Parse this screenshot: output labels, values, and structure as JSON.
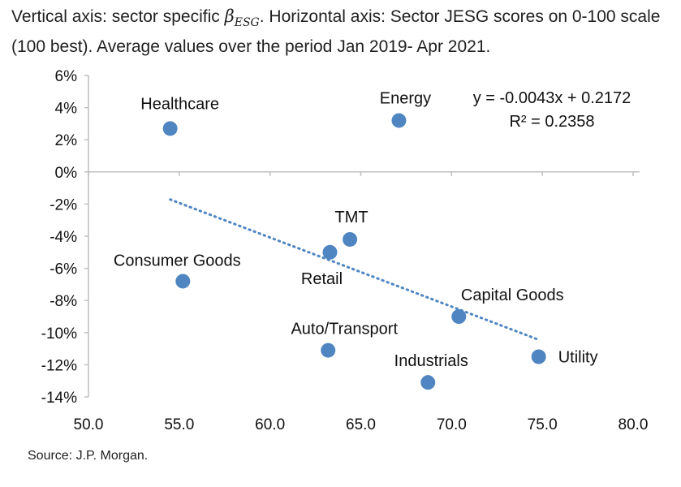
{
  "caption": {
    "before": "Vertical axis: sector specific ",
    "beta": "β",
    "beta_sub": "ESG",
    "after": ". Horizontal axis: Sector JESG scores on 0-100 scale (100 best). Average values over the period Jan 2019- Apr 2021."
  },
  "source": "Source: J.P. Morgan.",
  "chart_data": {
    "type": "scatter",
    "x_ticks": [
      "50.0",
      "55.0",
      "60.0",
      "65.0",
      "70.0",
      "75.0",
      "80.0"
    ],
    "y_ticks": [
      "6%",
      "4%",
      "2%",
      "0%",
      "-2%",
      "-4%",
      "-6%",
      "-8%",
      "-10%",
      "-12%",
      "-14%"
    ],
    "xlim": [
      50,
      80
    ],
    "ylim": [
      -0.14,
      0.06
    ],
    "point_color": "#4f86c1",
    "points": [
      {
        "name": "Healthcare",
        "x": 54.5,
        "y": 0.027
      },
      {
        "name": "Energy",
        "x": 67.1,
        "y": 0.032
      },
      {
        "name": "TMT",
        "x": 64.4,
        "y": -0.042
      },
      {
        "name": "Retail",
        "x": 63.3,
        "y": -0.05
      },
      {
        "name": "Consumer Goods",
        "x": 55.2,
        "y": -0.068
      },
      {
        "name": "Capital Goods",
        "x": 70.4,
        "y": -0.09
      },
      {
        "name": "Auto/Transport",
        "x": 63.2,
        "y": -0.111
      },
      {
        "name": "Utility",
        "x": 74.8,
        "y": -0.115
      },
      {
        "name": "Industrials",
        "x": 68.7,
        "y": -0.131
      }
    ],
    "trendline": {
      "slope": -0.0043,
      "intercept": 0.2172,
      "x_range": [
        54.5,
        74.8
      ],
      "style": "dotted",
      "equation": "y = -0.0043x + 0.2172",
      "r_squared": "R² = 0.2358"
    },
    "grid": false,
    "legend": "none"
  }
}
